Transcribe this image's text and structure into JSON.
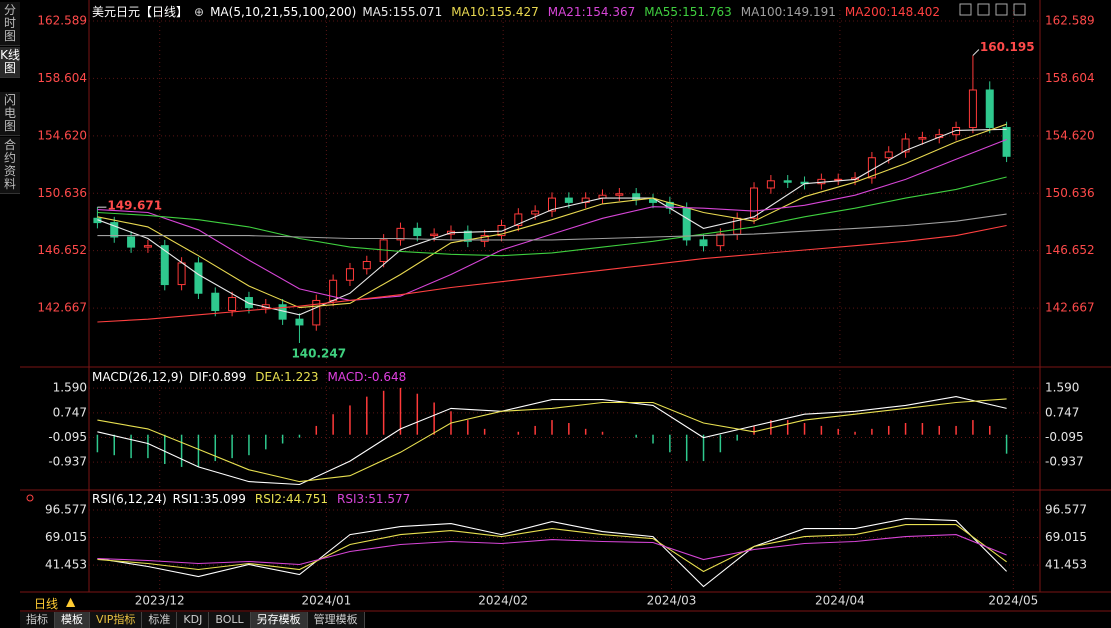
{
  "sidebar": [
    "分时图",
    "K线图",
    "闪电图",
    "合约资料"
  ],
  "period": "日线",
  "tabs": [
    "指标",
    "模板",
    "VIP指标",
    "标准",
    "KDJ",
    "BOLL",
    "另存模板",
    "管理模板"
  ],
  "chart_data": [
    {
      "type": "candlestick",
      "title": "美元日元【日线】",
      "ma_label": "MA(5,10,21,55,100,200)",
      "up_color": "#ff3a3a",
      "down_color": "#2fc98e",
      "xlim": [
        -0.5,
        54.5
      ],
      "xticks": [
        {
          "value": 3.7,
          "label": "2023/12"
        },
        {
          "value": 13.6,
          "label": "2024/01"
        },
        {
          "value": 24.1,
          "label": "2024/02"
        },
        {
          "value": 34.1,
          "label": "2024/03"
        },
        {
          "value": 44.1,
          "label": "2024/04"
        },
        {
          "value": 54.4,
          "label": "2024/05"
        }
      ],
      "ylim": [
        138.72,
        163.35
      ],
      "yticks": [
        162.589,
        158.604,
        {
          "value": 154.62,
          "label": "154.620"
        },
        150.636,
        146.652,
        142.667
      ],
      "grid": true,
      "open": [
        148.9,
        148.6,
        147.6,
        146.9,
        147.0,
        144.3,
        145.8,
        143.7,
        142.5,
        143.4,
        142.7,
        142.9,
        141.9,
        141.5,
        143.2,
        144.6,
        145.4,
        145.9,
        147.4,
        148.2,
        147.7,
        147.8,
        148.0,
        147.3,
        147.7,
        148.4,
        149.2,
        149.4,
        150.3,
        150.0,
        150.3,
        150.5,
        150.6,
        150.2,
        150.0,
        149.6,
        147.4,
        147.0,
        147.8,
        148.9,
        151.0,
        151.5,
        151.4,
        151.3,
        151.6,
        151.6,
        151.7,
        153.1,
        153.5,
        154.4,
        154.5,
        154.7,
        155.2,
        157.8,
        155.2
      ],
      "high": [
        149.671,
        149.0,
        148.0,
        147.4,
        147.4,
        146.2,
        146.2,
        144.1,
        143.8,
        143.8,
        143.3,
        143.3,
        142.3,
        143.6,
        145.0,
        145.8,
        146.3,
        147.8,
        148.6,
        148.6,
        148.2,
        148.4,
        148.4,
        148.1,
        148.8,
        149.6,
        149.8,
        150.7,
        150.7,
        150.7,
        150.9,
        151.0,
        151.0,
        150.6,
        150.4,
        150.0,
        147.8,
        148.2,
        149.3,
        151.4,
        151.9,
        151.9,
        151.8,
        152.0,
        152.0,
        152.1,
        153.5,
        153.9,
        154.8,
        154.9,
        155.1,
        155.6,
        160.195,
        158.4,
        155.6
      ],
      "low": [
        148.2,
        147.2,
        146.5,
        146.5,
        143.9,
        143.9,
        143.3,
        142.1,
        142.1,
        142.3,
        142.3,
        141.5,
        140.247,
        141.1,
        142.8,
        144.2,
        145.0,
        145.5,
        147.0,
        147.3,
        147.3,
        147.4,
        146.9,
        146.9,
        147.3,
        148.0,
        148.8,
        149.0,
        149.6,
        149.6,
        149.9,
        150.1,
        149.8,
        149.6,
        149.2,
        147.0,
        146.6,
        146.6,
        147.4,
        148.5,
        150.6,
        151.0,
        150.9,
        150.9,
        151.2,
        151.2,
        151.3,
        152.7,
        153.1,
        154.0,
        154.1,
        154.3,
        154.8,
        154.8,
        152.8
      ],
      "close": [
        148.6,
        147.6,
        146.9,
        147.0,
        144.3,
        145.8,
        143.7,
        142.5,
        143.4,
        142.7,
        142.9,
        141.9,
        141.5,
        143.2,
        144.6,
        145.4,
        145.9,
        147.4,
        148.2,
        147.7,
        147.8,
        148.0,
        147.3,
        147.7,
        148.4,
        149.2,
        149.4,
        150.3,
        150.0,
        150.3,
        150.5,
        150.6,
        150.2,
        150.0,
        149.6,
        147.4,
        147.0,
        147.8,
        148.9,
        151.0,
        151.5,
        151.4,
        151.3,
        151.6,
        151.6,
        151.7,
        153.1,
        153.5,
        154.4,
        154.5,
        154.7,
        155.2,
        157.8,
        155.2,
        153.2
      ],
      "series": [
        {
          "name": "MA5",
          "color": "#e8e8e8",
          "x": [
            0,
            3,
            6,
            9,
            12,
            15,
            18,
            21,
            24,
            27,
            30,
            33,
            36,
            39,
            42,
            45,
            48,
            51,
            54
          ],
          "values": [
            148.8,
            147.5,
            145.0,
            143.0,
            142.2,
            143.7,
            146.7,
            147.9,
            148.0,
            149.5,
            150.3,
            150.3,
            148.2,
            149.0,
            151.3,
            151.6,
            153.6,
            155.0,
            155.071
          ]
        },
        {
          "name": "MA10",
          "color": "#e8d850",
          "x": [
            0,
            3,
            6,
            9,
            12,
            15,
            18,
            21,
            24,
            27,
            30,
            33,
            36,
            39,
            42,
            45,
            48,
            51,
            54
          ],
          "values": [
            149.0,
            148.3,
            146.3,
            144.2,
            142.7,
            143.0,
            145.0,
            147.2,
            147.8,
            148.8,
            149.9,
            150.3,
            149.3,
            148.7,
            150.4,
            151.4,
            152.7,
            154.2,
            155.427
          ]
        },
        {
          "name": "MA21",
          "color": "#d645d6",
          "x": [
            0,
            3,
            6,
            9,
            12,
            15,
            18,
            21,
            24,
            27,
            30,
            33,
            36,
            39,
            42,
            45,
            48,
            51,
            54
          ],
          "values": [
            149.5,
            149.3,
            148.1,
            146.0,
            144.0,
            143.2,
            143.5,
            145.0,
            146.7,
            147.8,
            148.9,
            149.7,
            149.6,
            149.4,
            149.8,
            150.5,
            151.6,
            153.0,
            154.367
          ]
        },
        {
          "name": "MA55",
          "color": "#3fcf3f",
          "x": [
            0,
            3,
            6,
            9,
            12,
            15,
            18,
            21,
            24,
            27,
            30,
            33,
            36,
            39,
            42,
            45,
            48,
            51,
            54
          ],
          "values": [
            149.3,
            149.1,
            148.8,
            148.3,
            147.5,
            146.9,
            146.6,
            146.4,
            146.3,
            146.5,
            146.9,
            147.3,
            147.8,
            148.3,
            149.0,
            149.6,
            150.3,
            150.9,
            151.763
          ]
        },
        {
          "name": "MA100",
          "color": "#a0a0a0",
          "x": [
            0,
            3,
            6,
            9,
            12,
            15,
            18,
            21,
            24,
            27,
            30,
            33,
            36,
            39,
            42,
            45,
            48,
            51,
            54
          ],
          "values": [
            147.7,
            147.7,
            147.7,
            147.7,
            147.6,
            147.5,
            147.5,
            147.4,
            147.4,
            147.4,
            147.5,
            147.6,
            147.7,
            147.8,
            148.0,
            148.2,
            148.4,
            148.7,
            149.191
          ]
        },
        {
          "name": "MA200",
          "color": "#ff4040",
          "x": [
            0,
            3,
            6,
            9,
            12,
            15,
            18,
            21,
            24,
            27,
            30,
            33,
            36,
            39,
            42,
            45,
            48,
            51,
            54
          ],
          "values": [
            141.7,
            141.9,
            142.2,
            142.5,
            142.8,
            143.2,
            143.6,
            144.1,
            144.5,
            144.9,
            145.3,
            145.7,
            146.1,
            146.4,
            146.7,
            147.0,
            147.3,
            147.7,
            148.402
          ]
        }
      ]
    },
    {
      "type": "macd",
      "title": "MACD(26,12,9)",
      "ylim": [
        -1.82,
        2.21
      ],
      "yticks": [
        {
          "value": 1.59,
          "label": "1.590"
        },
        0.747,
        -0.095,
        -0.937
      ],
      "grid": true,
      "series": [
        {
          "name": "DIF",
          "color": "#ffffff",
          "x": [
            0,
            3,
            6,
            9,
            12,
            15,
            18,
            21,
            24,
            27,
            30,
            33,
            36,
            39,
            42,
            45,
            48,
            51,
            54
          ],
          "values": [
            0.1,
            -0.3,
            -1.1,
            -1.6,
            -1.7,
            -0.9,
            0.2,
            0.9,
            0.8,
            1.2,
            1.2,
            1.0,
            -0.1,
            0.3,
            0.7,
            0.8,
            1.0,
            1.3,
            0.899
          ]
        },
        {
          "name": "DEA",
          "color": "#e8e050",
          "x": [
            0,
            3,
            6,
            9,
            12,
            15,
            18,
            21,
            24,
            27,
            30,
            33,
            36,
            39,
            42,
            45,
            48,
            51,
            54
          ],
          "values": [
            0.5,
            0.2,
            -0.5,
            -1.2,
            -1.6,
            -1.4,
            -0.6,
            0.4,
            0.8,
            0.9,
            1.1,
            1.1,
            0.4,
            0.1,
            0.5,
            0.7,
            0.9,
            1.1,
            1.223
          ]
        }
      ],
      "histogram": {
        "name": "MACD",
        "color": "#e040e0",
        "up_color": "#ff3a3a",
        "down_color": "#2fc98e",
        "values": [
          -0.6,
          -0.7,
          -0.8,
          -0.8,
          -1.0,
          -1.1,
          -1.1,
          -0.9,
          -0.8,
          -0.7,
          -0.5,
          -0.3,
          -0.1,
          0.3,
          0.7,
          1.0,
          1.3,
          1.5,
          1.6,
          1.4,
          1.1,
          0.8,
          0.5,
          0.2,
          0.0,
          0.1,
          0.3,
          0.5,
          0.4,
          0.2,
          0.1,
          0.0,
          -0.1,
          -0.3,
          -0.6,
          -0.9,
          -0.9,
          -0.6,
          -0.2,
          0.3,
          0.5,
          0.5,
          0.4,
          0.3,
          0.2,
          0.1,
          0.2,
          0.3,
          0.4,
          0.4,
          0.3,
          0.3,
          0.5,
          0.3,
          -0.648
        ]
      }
    },
    {
      "type": "rsi",
      "title": "RSI(6,12,24)",
      "ylim": [
        16.5,
        114.6
      ],
      "yticks": [
        96.577,
        69.015,
        41.453
      ],
      "grid": true,
      "series": [
        {
          "name": "RSI1",
          "color": "#ffffff",
          "x": [
            0,
            3,
            6,
            9,
            12,
            15,
            18,
            21,
            24,
            27,
            30,
            33,
            36,
            39,
            42,
            45,
            48,
            51,
            54
          ],
          "values": [
            48,
            40,
            30,
            42,
            32,
            72,
            80,
            83,
            72,
            85,
            75,
            70,
            20,
            60,
            78,
            78,
            88,
            86,
            35.099
          ]
        },
        {
          "name": "RSI2",
          "color": "#e8e050",
          "x": [
            0,
            3,
            6,
            9,
            12,
            15,
            18,
            21,
            24,
            27,
            30,
            33,
            36,
            39,
            42,
            45,
            48,
            51,
            54
          ],
          "values": [
            47,
            43,
            37,
            43,
            37,
            62,
            72,
            76,
            70,
            78,
            72,
            68,
            35,
            60,
            70,
            72,
            82,
            82,
            44.751
          ]
        },
        {
          "name": "RSI3",
          "color": "#d645d6",
          "x": [
            0,
            3,
            6,
            9,
            12,
            15,
            18,
            21,
            24,
            27,
            30,
            33,
            36,
            39,
            42,
            45,
            48,
            51,
            54
          ],
          "values": [
            48,
            46,
            43,
            45,
            42,
            55,
            62,
            65,
            63,
            67,
            65,
            64,
            47,
            57,
            63,
            65,
            70,
            72,
            51.577
          ]
        }
      ]
    }
  ]
}
